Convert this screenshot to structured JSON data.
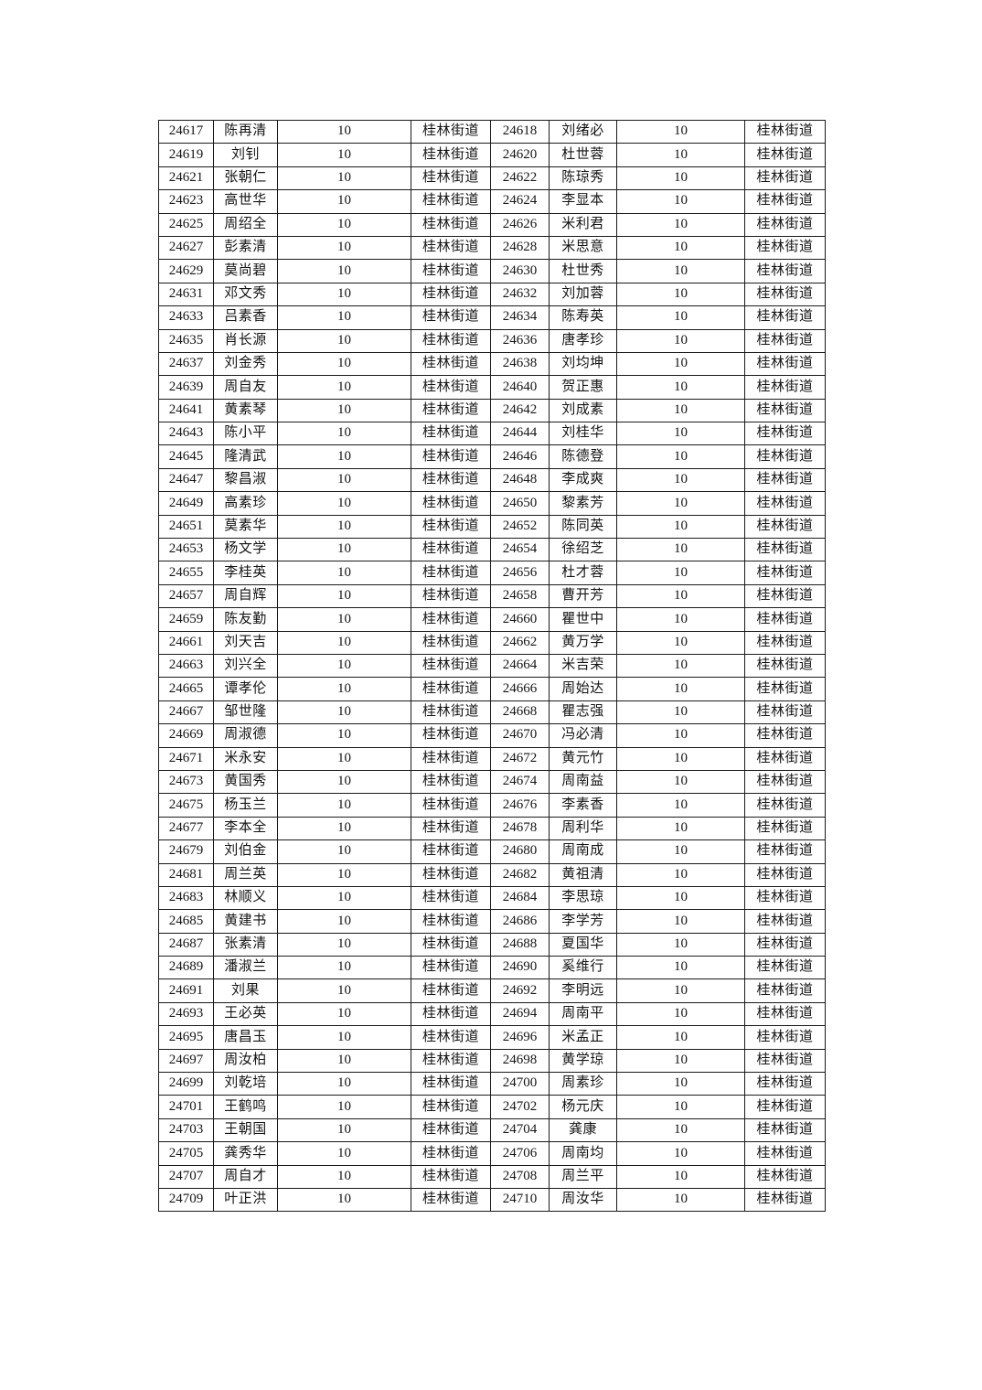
{
  "colors": {
    "text": "#141414",
    "border": "#1a1a1a",
    "background": "#ffffff"
  },
  "table": {
    "count_value": "10",
    "district_value": "桂林街道",
    "rows": [
      [
        "24617",
        "陈再清",
        "10",
        "桂林街道",
        "24618",
        "刘绪必",
        "10",
        "桂林街道"
      ],
      [
        "24619",
        "刘钊",
        "10",
        "桂林街道",
        "24620",
        "杜世蓉",
        "10",
        "桂林街道"
      ],
      [
        "24621",
        "张朝仁",
        "10",
        "桂林街道",
        "24622",
        "陈琼秀",
        "10",
        "桂林街道"
      ],
      [
        "24623",
        "高世华",
        "10",
        "桂林街道",
        "24624",
        "李显本",
        "10",
        "桂林街道"
      ],
      [
        "24625",
        "周绍全",
        "10",
        "桂林街道",
        "24626",
        "米利君",
        "10",
        "桂林街道"
      ],
      [
        "24627",
        "彭素清",
        "10",
        "桂林街道",
        "24628",
        "米思意",
        "10",
        "桂林街道"
      ],
      [
        "24629",
        "莫尚碧",
        "10",
        "桂林街道",
        "24630",
        "杜世秀",
        "10",
        "桂林街道"
      ],
      [
        "24631",
        "邓文秀",
        "10",
        "桂林街道",
        "24632",
        "刘加蓉",
        "10",
        "桂林街道"
      ],
      [
        "24633",
        "吕素香",
        "10",
        "桂林街道",
        "24634",
        "陈寿英",
        "10",
        "桂林街道"
      ],
      [
        "24635",
        "肖长源",
        "10",
        "桂林街道",
        "24636",
        "唐孝珍",
        "10",
        "桂林街道"
      ],
      [
        "24637",
        "刘金秀",
        "10",
        "桂林街道",
        "24638",
        "刘均坤",
        "10",
        "桂林街道"
      ],
      [
        "24639",
        "周自友",
        "10",
        "桂林街道",
        "24640",
        "贺正惠",
        "10",
        "桂林街道"
      ],
      [
        "24641",
        "黄素琴",
        "10",
        "桂林街道",
        "24642",
        "刘成素",
        "10",
        "桂林街道"
      ],
      [
        "24643",
        "陈小平",
        "10",
        "桂林街道",
        "24644",
        "刘桂华",
        "10",
        "桂林街道"
      ],
      [
        "24645",
        "隆清武",
        "10",
        "桂林街道",
        "24646",
        "陈德登",
        "10",
        "桂林街道"
      ],
      [
        "24647",
        "黎昌淑",
        "10",
        "桂林街道",
        "24648",
        "李成爽",
        "10",
        "桂林街道"
      ],
      [
        "24649",
        "高素珍",
        "10",
        "桂林街道",
        "24650",
        "黎素芳",
        "10",
        "桂林街道"
      ],
      [
        "24651",
        "莫素华",
        "10",
        "桂林街道",
        "24652",
        "陈同英",
        "10",
        "桂林街道"
      ],
      [
        "24653",
        "杨文学",
        "10",
        "桂林街道",
        "24654",
        "徐绍芝",
        "10",
        "桂林街道"
      ],
      [
        "24655",
        "李桂英",
        "10",
        "桂林街道",
        "24656",
        "杜才蓉",
        "10",
        "桂林街道"
      ],
      [
        "24657",
        "周自辉",
        "10",
        "桂林街道",
        "24658",
        "曹开芳",
        "10",
        "桂林街道"
      ],
      [
        "24659",
        "陈友勤",
        "10",
        "桂林街道",
        "24660",
        "瞿世中",
        "10",
        "桂林街道"
      ],
      [
        "24661",
        "刘天吉",
        "10",
        "桂林街道",
        "24662",
        "黄万学",
        "10",
        "桂林街道"
      ],
      [
        "24663",
        "刘兴全",
        "10",
        "桂林街道",
        "24664",
        "米吉荣",
        "10",
        "桂林街道"
      ],
      [
        "24665",
        "谭孝伦",
        "10",
        "桂林街道",
        "24666",
        "周始达",
        "10",
        "桂林街道"
      ],
      [
        "24667",
        "邹世隆",
        "10",
        "桂林街道",
        "24668",
        "瞿志强",
        "10",
        "桂林街道"
      ],
      [
        "24669",
        "周淑德",
        "10",
        "桂林街道",
        "24670",
        "冯必清",
        "10",
        "桂林街道"
      ],
      [
        "24671",
        "米永安",
        "10",
        "桂林街道",
        "24672",
        "黄元竹",
        "10",
        "桂林街道"
      ],
      [
        "24673",
        "黄国秀",
        "10",
        "桂林街道",
        "24674",
        "周南益",
        "10",
        "桂林街道"
      ],
      [
        "24675",
        "杨玉兰",
        "10",
        "桂林街道",
        "24676",
        "李素香",
        "10",
        "桂林街道"
      ],
      [
        "24677",
        "李本全",
        "10",
        "桂林街道",
        "24678",
        "周利华",
        "10",
        "桂林街道"
      ],
      [
        "24679",
        "刘伯金",
        "10",
        "桂林街道",
        "24680",
        "周南成",
        "10",
        "桂林街道"
      ],
      [
        "24681",
        "周兰英",
        "10",
        "桂林街道",
        "24682",
        "黄祖清",
        "10",
        "桂林街道"
      ],
      [
        "24683",
        "林顺义",
        "10",
        "桂林街道",
        "24684",
        "李思琼",
        "10",
        "桂林街道"
      ],
      [
        "24685",
        "黄建书",
        "10",
        "桂林街道",
        "24686",
        "李学芳",
        "10",
        "桂林街道"
      ],
      [
        "24687",
        "张素清",
        "10",
        "桂林街道",
        "24688",
        "夏国华",
        "10",
        "桂林街道"
      ],
      [
        "24689",
        "潘淑兰",
        "10",
        "桂林街道",
        "24690",
        "奚维行",
        "10",
        "桂林街道"
      ],
      [
        "24691",
        "刘果",
        "10",
        "桂林街道",
        "24692",
        "李明远",
        "10",
        "桂林街道"
      ],
      [
        "24693",
        "王必英",
        "10",
        "桂林街道",
        "24694",
        "周南平",
        "10",
        "桂林街道"
      ],
      [
        "24695",
        "唐昌玉",
        "10",
        "桂林街道",
        "24696",
        "米孟正",
        "10",
        "桂林街道"
      ],
      [
        "24697",
        "周汝柏",
        "10",
        "桂林街道",
        "24698",
        "黄学琼",
        "10",
        "桂林街道"
      ],
      [
        "24699",
        "刘乾培",
        "10",
        "桂林街道",
        "24700",
        "周素珍",
        "10",
        "桂林街道"
      ],
      [
        "24701",
        "王鹤鸣",
        "10",
        "桂林街道",
        "24702",
        "杨元庆",
        "10",
        "桂林街道"
      ],
      [
        "24703",
        "王朝国",
        "10",
        "桂林街道",
        "24704",
        "龚康",
        "10",
        "桂林街道"
      ],
      [
        "24705",
        "龚秀华",
        "10",
        "桂林街道",
        "24706",
        "周南均",
        "10",
        "桂林街道"
      ],
      [
        "24707",
        "周自才",
        "10",
        "桂林街道",
        "24708",
        "周兰平",
        "10",
        "桂林街道"
      ],
      [
        "24709",
        "叶正洪",
        "10",
        "桂林街道",
        "24710",
        "周汝华",
        "10",
        "桂林街道"
      ]
    ]
  }
}
